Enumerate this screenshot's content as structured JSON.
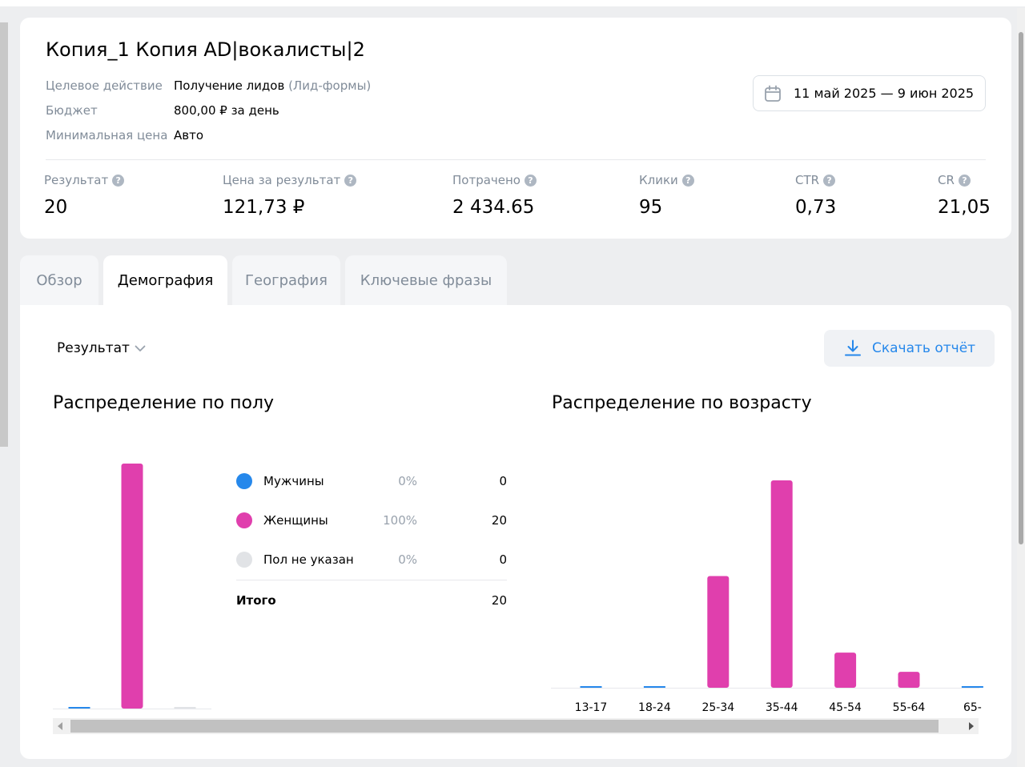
{
  "campaign": {
    "title": "Копия_1 Копия AD|вокалисты|2",
    "meta": [
      {
        "key": "Целевое действие",
        "value": "Получение лидов",
        "value_muted": " (Лид-формы)"
      },
      {
        "key": "Бюджет",
        "value": "800,00 ₽ за день",
        "value_muted": ""
      },
      {
        "key": "Минимальная цена",
        "value": "Авто",
        "value_muted": ""
      }
    ],
    "date_range": "11 май 2025 — 9 июн 2025",
    "calendar_icon": "calendar-icon"
  },
  "stats": [
    {
      "label": "Результат",
      "value": "20"
    },
    {
      "label": "Цена за результат",
      "value": "121,73 ₽"
    },
    {
      "label": "Потрачено",
      "value": "2 434.65"
    },
    {
      "label": "Клики",
      "value": "95"
    },
    {
      "label": "CTR",
      "value": "0,73"
    },
    {
      "label": "CR",
      "value": "21,05"
    }
  ],
  "help_icon_glyph": "?",
  "tabs": [
    {
      "label": "Обзор",
      "active": false
    },
    {
      "label": "Демография",
      "active": true
    },
    {
      "label": "География",
      "active": false
    },
    {
      "label": "Ключевые фразы",
      "active": false
    }
  ],
  "toolbar": {
    "metric_selected": "Результат",
    "download_label": "Скачать отчёт"
  },
  "gender_section": {
    "title": "Распределение по полу",
    "legend": [
      {
        "name": "Мужчины",
        "pct": "0%",
        "count": "0",
        "color": "#2688eb"
      },
      {
        "name": "Женщины",
        "pct": "100%",
        "count": "20",
        "color": "#e03fad"
      },
      {
        "name": "Пол не указан",
        "pct": "0%",
        "count": "0",
        "color": "#e1e3e6"
      }
    ],
    "total_label": "Итого",
    "total_count": "20"
  },
  "age_section": {
    "title": "Распределение по возрасту"
  },
  "chart_data": [
    {
      "type": "bar",
      "categories": [
        "Мужчины",
        "Женщины",
        "Пол не указан"
      ],
      "values": [
        0,
        20,
        0
      ],
      "colors": [
        "#2688eb",
        "#e03fad",
        "#e1e3e6"
      ]
    },
    {
      "type": "bar",
      "categories": [
        "13-17",
        "18-24",
        "25-34",
        "35-44",
        "45-54",
        "55-64",
        "65-"
      ],
      "values": [
        0,
        0,
        3.5,
        6.5,
        1.1,
        0.5,
        0
      ],
      "zero_color": "#2688eb",
      "bar_color": "#e03fad"
    }
  ]
}
